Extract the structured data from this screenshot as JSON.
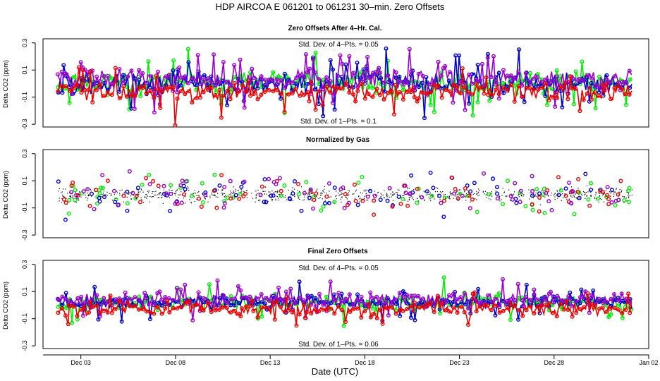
{
  "chart_data": {
    "type": "scatter",
    "title": "HDP    AIRCOA E    061201 to 061231    30–min. Zero Offsets",
    "xlabel": "Date (UTC)",
    "x_range_days": [
      0,
      32
    ],
    "x_ticks": [
      {
        "day": 2,
        "label": "Dec 03"
      },
      {
        "day": 7,
        "label": "Dec 08"
      },
      {
        "day": 12,
        "label": "Dec 13"
      },
      {
        "day": 17,
        "label": "Dec 18"
      },
      {
        "day": 22,
        "label": "Dec 23"
      },
      {
        "day": 27,
        "label": "Dec 28"
      },
      {
        "day": 32,
        "label": "Jan 02"
      }
    ],
    "series_colors": {
      "green": "#00ee00",
      "blue": "#0000cc",
      "red": "#ee0000",
      "purple": "#9900cc",
      "black": "#000000"
    },
    "panels": [
      {
        "title": "Zero Offsets After 4–Hr. Cal.",
        "ylabel": "Delta CO2 (ppm)",
        "ylim": [
          -0.32,
          0.33
        ],
        "yticks": [
          {
            "v": 0.3,
            "label": "0.3"
          },
          {
            "v": 0.1,
            "label": "0.1"
          },
          {
            "v": -0.1,
            "label": "-0.1"
          },
          {
            "v": -0.3,
            "label": "-0.3"
          }
        ],
        "annot_top": "Std. Dev. of 4–Pts. =  0.05",
        "annot_bottom": "Std. Dev. of 1–Pts. =  0.1",
        "style": "spiky",
        "series": [
          {
            "name": "green",
            "mean": 0.01,
            "spread": 0.07,
            "seed": 11
          },
          {
            "name": "blue",
            "mean": 0.0,
            "spread": 0.08,
            "seed": 23
          },
          {
            "name": "purple",
            "mean": 0.03,
            "spread": 0.07,
            "seed": 37
          },
          {
            "name": "red",
            "mean": -0.06,
            "spread": 0.06,
            "seed": 51
          }
        ]
      },
      {
        "title": "Normalized by Gas",
        "ylabel": "Delta CO2 (ppm)",
        "ylim": [
          -0.32,
          0.33
        ],
        "yticks": [
          {
            "v": 0.3,
            "label": "0.3"
          },
          {
            "v": 0.1,
            "label": "0.1"
          },
          {
            "v": -0.1,
            "label": "-0.1"
          },
          {
            "v": -0.3,
            "label": "-0.3"
          }
        ],
        "annot_top": "",
        "annot_bottom": "",
        "style": "scatter",
        "series": [
          {
            "name": "black",
            "mean": 0.0,
            "spread": 0.05,
            "seed": 5
          },
          {
            "name": "green",
            "mean": 0.0,
            "spread": 0.13,
            "seed": 61
          },
          {
            "name": "blue",
            "mean": 0.0,
            "spread": 0.14,
            "seed": 73
          },
          {
            "name": "red",
            "mean": 0.0,
            "spread": 0.13,
            "seed": 89
          },
          {
            "name": "purple",
            "mean": 0.0,
            "spread": 0.13,
            "seed": 97
          }
        ]
      },
      {
        "title": "Final Zero Offsets",
        "ylabel": "Delta CO2 (ppm)",
        "ylim": [
          -0.32,
          0.33
        ],
        "yticks": [
          {
            "v": 0.3,
            "label": "0.3"
          },
          {
            "v": 0.1,
            "label": "0.1"
          },
          {
            "v": -0.1,
            "label": "-0.1"
          },
          {
            "v": -0.3,
            "label": "-0.3"
          }
        ],
        "annot_top": "Std. Dev. of 4–Pts. =  0.05",
        "annot_bottom": "Std. Dev. of 1–Pts. =  0.06",
        "style": "spiky",
        "series": [
          {
            "name": "green",
            "mean": 0.02,
            "spread": 0.045,
            "seed": 13
          },
          {
            "name": "blue",
            "mean": 0.02,
            "spread": 0.045,
            "seed": 29
          },
          {
            "name": "purple",
            "mean": 0.04,
            "spread": 0.045,
            "seed": 41
          },
          {
            "name": "red",
            "mean": -0.03,
            "spread": 0.045,
            "seed": 57
          }
        ]
      }
    ]
  }
}
